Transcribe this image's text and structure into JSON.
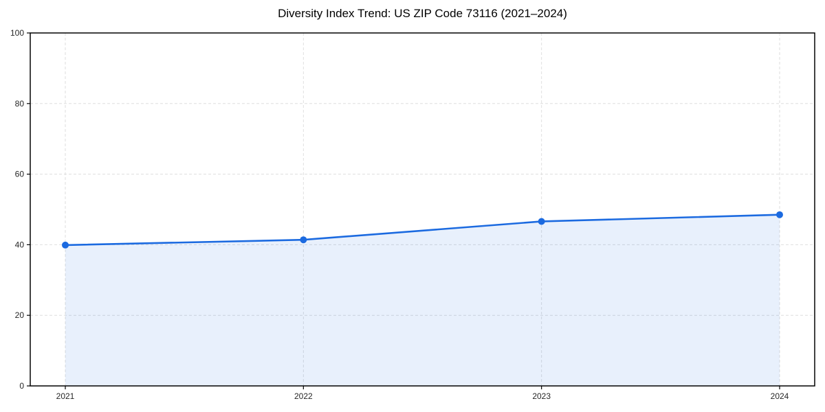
{
  "page": {
    "background": "#ffffff"
  },
  "chart_data": {
    "type": "area",
    "title": "Diversity Index Trend: US ZIP Code 73116 (2021–2024)",
    "x": [
      "2021",
      "2022",
      "2023",
      "2024"
    ],
    "series": [
      {
        "name": "Diversity Index",
        "values": [
          39.9,
          41.4,
          46.6,
          48.5
        ]
      }
    ],
    "xlabel": "",
    "ylabel": "",
    "ylim": [
      0,
      100
    ],
    "yticks": [
      0,
      20,
      40,
      60,
      80,
      100
    ],
    "xticks": [
      "2021",
      "2022",
      "2023",
      "2024"
    ],
    "grid": {
      "visible": true,
      "style": "dashed",
      "axes": "both"
    },
    "legend": "none",
    "marker": {
      "shape": "circle",
      "radius": 5
    },
    "colors": {
      "line": "#1b6ae0",
      "marker": "#1b6ae0",
      "fill": "#1b6ae0",
      "fill_opacity": 0.1,
      "grid": "#dedede",
      "spine": "#000000",
      "tick_label": "#262626",
      "title": "#000000",
      "background": "#ffffff"
    }
  }
}
